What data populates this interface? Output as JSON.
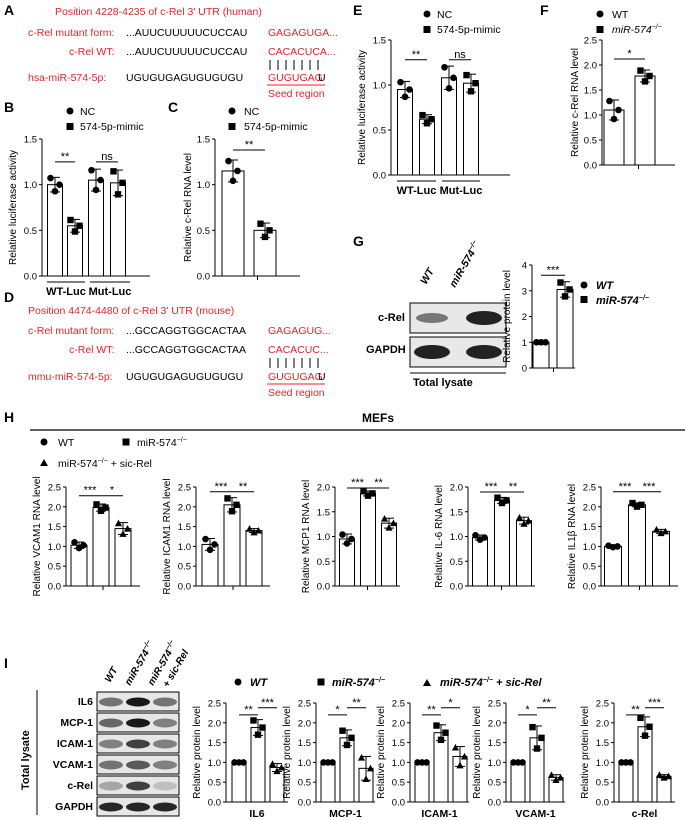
{
  "panelA": {
    "letter": "A",
    "title": "Position 4228-4235 of c-Rel 3' UTR (human)",
    "mutant_label": "c-Rel mutant form:",
    "mutant_seq": "...AUUCUUUUUCUCCAU",
    "mutant_seed": "GAGAGUGA...",
    "wt_label": "c-Rel WT:",
    "wt_seq": "...AUUCUUUUUCUCCAU",
    "wt_seed": "CACACUCA...",
    "mir_label": "hsa-miR-574-5p:",
    "mir_seq": "UGUGUGAGUGUGUGU",
    "mir_seed": "GUGUGAG",
    "mir_tail": "U",
    "seed_region": "Seed region"
  },
  "panelD": {
    "letter": "D",
    "title": "Position 4474-4480 of c-Rel 3' UTR (mouse)",
    "mutant_label": "c-Rel mutant form:",
    "mutant_seq": "...GCCAGGTGGCACTAA",
    "mutant_seed": "GAGAGUG...",
    "wt_label": "c-Rel WT:",
    "wt_seq": "...GCCAGGTGGCACTAA",
    "wt_seed": "CACACUC...",
    "mir_label": "mmu-miR-574-5p:",
    "mir_seq": "UGUGUGAGUGUGUGU",
    "mir_seed": "GUGUGAG",
    "mir_tail": "U",
    "seed_region": "Seed region"
  },
  "letters": {
    "B": "B",
    "C": "C",
    "E": "E",
    "F": "F",
    "G": "G",
    "H": "H",
    "I": "I"
  },
  "legend": {
    "nc": "NC",
    "mimic": "574-5p-mimic",
    "wt": "WT",
    "ko": "miR-574",
    "ko_sup": "−/−",
    "rescue_suffix": " + sic-Rel",
    "mefs": "MEFs"
  },
  "luc": {
    "ylabel": "Relative luciferase activity",
    "groups": [
      "WT-Luc",
      "Mut-Luc"
    ],
    "sig": [
      "**",
      "ns"
    ],
    "ticks": [
      0.0,
      0.5,
      1.0,
      1.5
    ]
  },
  "chart_data": [
    {
      "id": "B",
      "type": "bar",
      "ylabel": "Relative luciferase activity",
      "categories": [
        "WT-Luc NC",
        "WT-Luc 574-5p-mimic",
        "Mut-Luc NC",
        "Mut-Luc 574-5p-mimic"
      ],
      "values": [
        1.0,
        0.55,
        1.05,
        1.02
      ],
      "errors": [
        0.08,
        0.07,
        0.12,
        0.14
      ],
      "ylim": [
        0,
        1.5
      ],
      "sig": [
        "**",
        "ns"
      ]
    },
    {
      "id": "C",
      "type": "bar",
      "ylabel": "Relative c-Rel RNA level",
      "categories": [
        "NC",
        "574-5p-mimic"
      ],
      "values": [
        1.15,
        0.5
      ],
      "errors": [
        0.12,
        0.08
      ],
      "ylim": [
        0,
        1.5
      ],
      "sig": [
        "**"
      ]
    },
    {
      "id": "E",
      "type": "bar",
      "ylabel": "Relative luciferase activity",
      "categories": [
        "WT-Luc NC",
        "WT-Luc 574-5p-mimic",
        "Mut-Luc NC",
        "Mut-Luc 574-5p-mimic"
      ],
      "values": [
        0.95,
        0.62,
        1.08,
        1.02
      ],
      "errors": [
        0.09,
        0.05,
        0.13,
        0.1
      ],
      "ylim": [
        0,
        1.5
      ],
      "sig": [
        "**",
        "ns"
      ]
    },
    {
      "id": "F",
      "type": "bar",
      "ylabel": "Relative c-Rel RNA level",
      "categories": [
        "WT",
        "miR-574−/−"
      ],
      "values": [
        1.1,
        1.78
      ],
      "errors": [
        0.2,
        0.12
      ],
      "ylim": [
        0,
        2.5
      ],
      "sig": [
        "*"
      ]
    },
    {
      "id": "G",
      "type": "bar",
      "ylabel": "Relative protein level",
      "categories": [
        "WT",
        "miR-574−/−"
      ],
      "values": [
        1.0,
        3.05
      ],
      "errors": [
        0.0,
        0.3
      ],
      "ylim": [
        0,
        4
      ],
      "sig": [
        "***"
      ]
    },
    {
      "id": "H1",
      "type": "bar",
      "ylabel": "Relative VCAM1 RNA level",
      "categories": [
        "WT",
        "miR-574−/−",
        "miR-574−/− + sic-Rel"
      ],
      "values": [
        1.03,
        1.98,
        1.45
      ],
      "errors": [
        0.08,
        0.09,
        0.15
      ],
      "ylim": [
        0,
        2.5
      ],
      "sig": [
        "***",
        "*"
      ]
    },
    {
      "id": "H2",
      "type": "bar",
      "ylabel": "Relative ICAM1 RNA level",
      "categories": [
        "WT",
        "miR-574−/−",
        "miR-574−/− + sic-Rel"
      ],
      "values": [
        1.05,
        2.05,
        1.4
      ],
      "errors": [
        0.15,
        0.18,
        0.05
      ],
      "ylim": [
        0,
        2.5
      ],
      "sig": [
        "***",
        "**"
      ]
    },
    {
      "id": "H3",
      "type": "bar",
      "ylabel": "Relative MCP1 RNA level",
      "categories": [
        "WT",
        "miR-574−/−",
        "miR-574−/− + sic-Rel"
      ],
      "values": [
        0.95,
        1.87,
        1.27
      ],
      "errors": [
        0.1,
        0.05,
        0.1
      ],
      "ylim": [
        0,
        2.0
      ],
      "sig": [
        "***",
        "**"
      ]
    },
    {
      "id": "H4",
      "type": "bar",
      "ylabel": "Relative IL-6 RNA level",
      "categories": [
        "WT",
        "miR-574−/−",
        "miR-574−/− + sic-Rel"
      ],
      "values": [
        0.98,
        1.73,
        1.32
      ],
      "errors": [
        0.05,
        0.06,
        0.07
      ],
      "ylim": [
        0,
        2.0
      ],
      "sig": [
        "***",
        "**"
      ]
    },
    {
      "id": "H5",
      "type": "bar",
      "ylabel": "Relative IL1β RNA level",
      "categories": [
        "WT",
        "miR-574−/−",
        "miR-574−/− + sic-Rel"
      ],
      "values": [
        1.0,
        2.05,
        1.38
      ],
      "errors": [
        0.02,
        0.05,
        0.05
      ],
      "ylim": [
        0,
        2.5
      ],
      "sig": [
        "***",
        "***"
      ]
    },
    {
      "id": "I1",
      "type": "bar",
      "title": "IL6",
      "ylabel": "Relative protein level",
      "categories": [
        "WT",
        "miR-574−/−",
        "miR-574−/− + sic-Rel"
      ],
      "values": [
        1.0,
        1.88,
        0.87
      ],
      "errors": [
        0.0,
        0.2,
        0.1
      ],
      "ylim": [
        0,
        2.5
      ],
      "sig": [
        "**",
        "***"
      ]
    },
    {
      "id": "I2",
      "type": "bar",
      "title": "MCP-1",
      "ylabel": "Relative protein level",
      "categories": [
        "WT",
        "miR-574−/−",
        "miR-574−/− + sic-Rel"
      ],
      "values": [
        1.0,
        1.62,
        0.85
      ],
      "errors": [
        0.0,
        0.2,
        0.3
      ],
      "ylim": [
        0,
        2.5
      ],
      "sig": [
        "*",
        "**"
      ]
    },
    {
      "id": "I3",
      "type": "bar",
      "title": "ICAM-1",
      "ylabel": "Relative protein level",
      "categories": [
        "WT",
        "miR-574−/−",
        "miR-574−/− + sic-Rel"
      ],
      "values": [
        1.0,
        1.75,
        1.15
      ],
      "errors": [
        0.0,
        0.2,
        0.25
      ],
      "ylim": [
        0,
        2.5
      ],
      "sig": [
        "**",
        "*"
      ]
    },
    {
      "id": "I4",
      "type": "bar",
      "title": "VCAM-1",
      "ylabel": "Relative protein level",
      "categories": [
        "WT",
        "miR-574−/−",
        "miR-574−/− + sic-Rel"
      ],
      "values": [
        1.0,
        1.62,
        0.62
      ],
      "errors": [
        0.0,
        0.3,
        0.07
      ],
      "ylim": [
        0,
        2.5
      ],
      "sig": [
        "*",
        "**"
      ]
    },
    {
      "id": "I5",
      "type": "bar",
      "title": "c-Rel",
      "ylabel": "Relative protein level",
      "categories": [
        "WT",
        "miR-574−/−",
        "miR-574−/− + sic-Rel"
      ],
      "values": [
        1.0,
        1.9,
        0.65
      ],
      "errors": [
        0.0,
        0.25,
        0.04
      ],
      "ylim": [
        0,
        2.5
      ],
      "sig": [
        "**",
        "***"
      ]
    }
  ],
  "blotG": {
    "lanes": [
      "WT",
      "miR-574"
    ],
    "lane_sup": "−/−",
    "rows": [
      "c-Rel",
      "GAPDH"
    ],
    "caption": "Total lysate"
  },
  "blotI": {
    "lanes": [
      "WT",
      "miR-574",
      "miR-574"
    ],
    "lane_sup": "−/−",
    "lane3_extra": "+ sic-Rel",
    "rows": [
      "IL6",
      "MCP-1",
      "ICAM-1",
      "VCAM-1",
      "c-Rel",
      "GAPDH"
    ],
    "side_label": "Total lysate"
  }
}
